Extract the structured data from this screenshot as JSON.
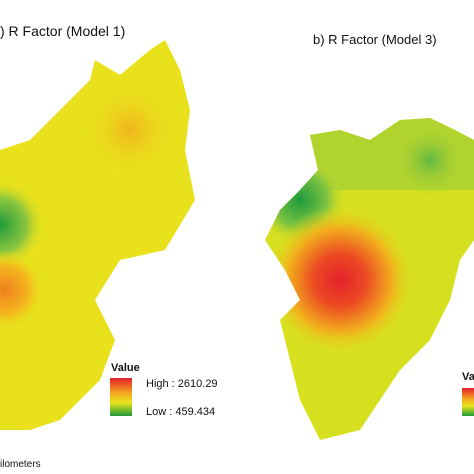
{
  "panels": [
    {
      "title": ") R Factor (Model 1)",
      "legend": {
        "title": "Value",
        "high": "High : 2610.29",
        "low": "Low : 459.434"
      }
    },
    {
      "title": "b) R Factor (Model 3)",
      "legend": {
        "title": "Va"
      }
    }
  ],
  "scale_bar": {
    "unit": "ilometers"
  }
}
